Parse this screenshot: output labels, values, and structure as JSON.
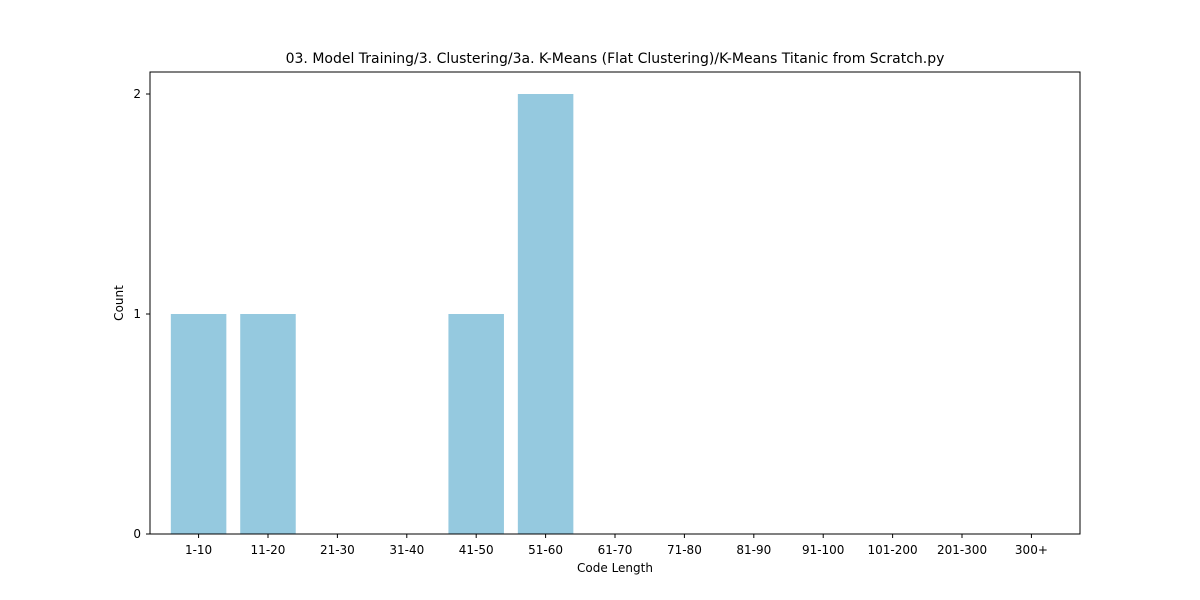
{
  "chart_data": {
    "type": "bar",
    "title": "03. Model Training/3. Clustering/3a. K-Means (Flat Clustering)/K-Means Titanic from Scratch.py",
    "xlabel": "Code Length",
    "ylabel": "Count",
    "categories": [
      "1-10",
      "11-20",
      "21-30",
      "31-40",
      "41-50",
      "51-60",
      "61-70",
      "71-80",
      "81-90",
      "91-100",
      "101-200",
      "201-300",
      "300+"
    ],
    "values": [
      1,
      1,
      0,
      0,
      1,
      2,
      0,
      0,
      0,
      0,
      0,
      0,
      0
    ],
    "ylim": [
      0,
      2.1
    ],
    "yticks": [
      0,
      1,
      2
    ],
    "bar_color": "#95c9df",
    "grid": false,
    "legend": "none"
  }
}
